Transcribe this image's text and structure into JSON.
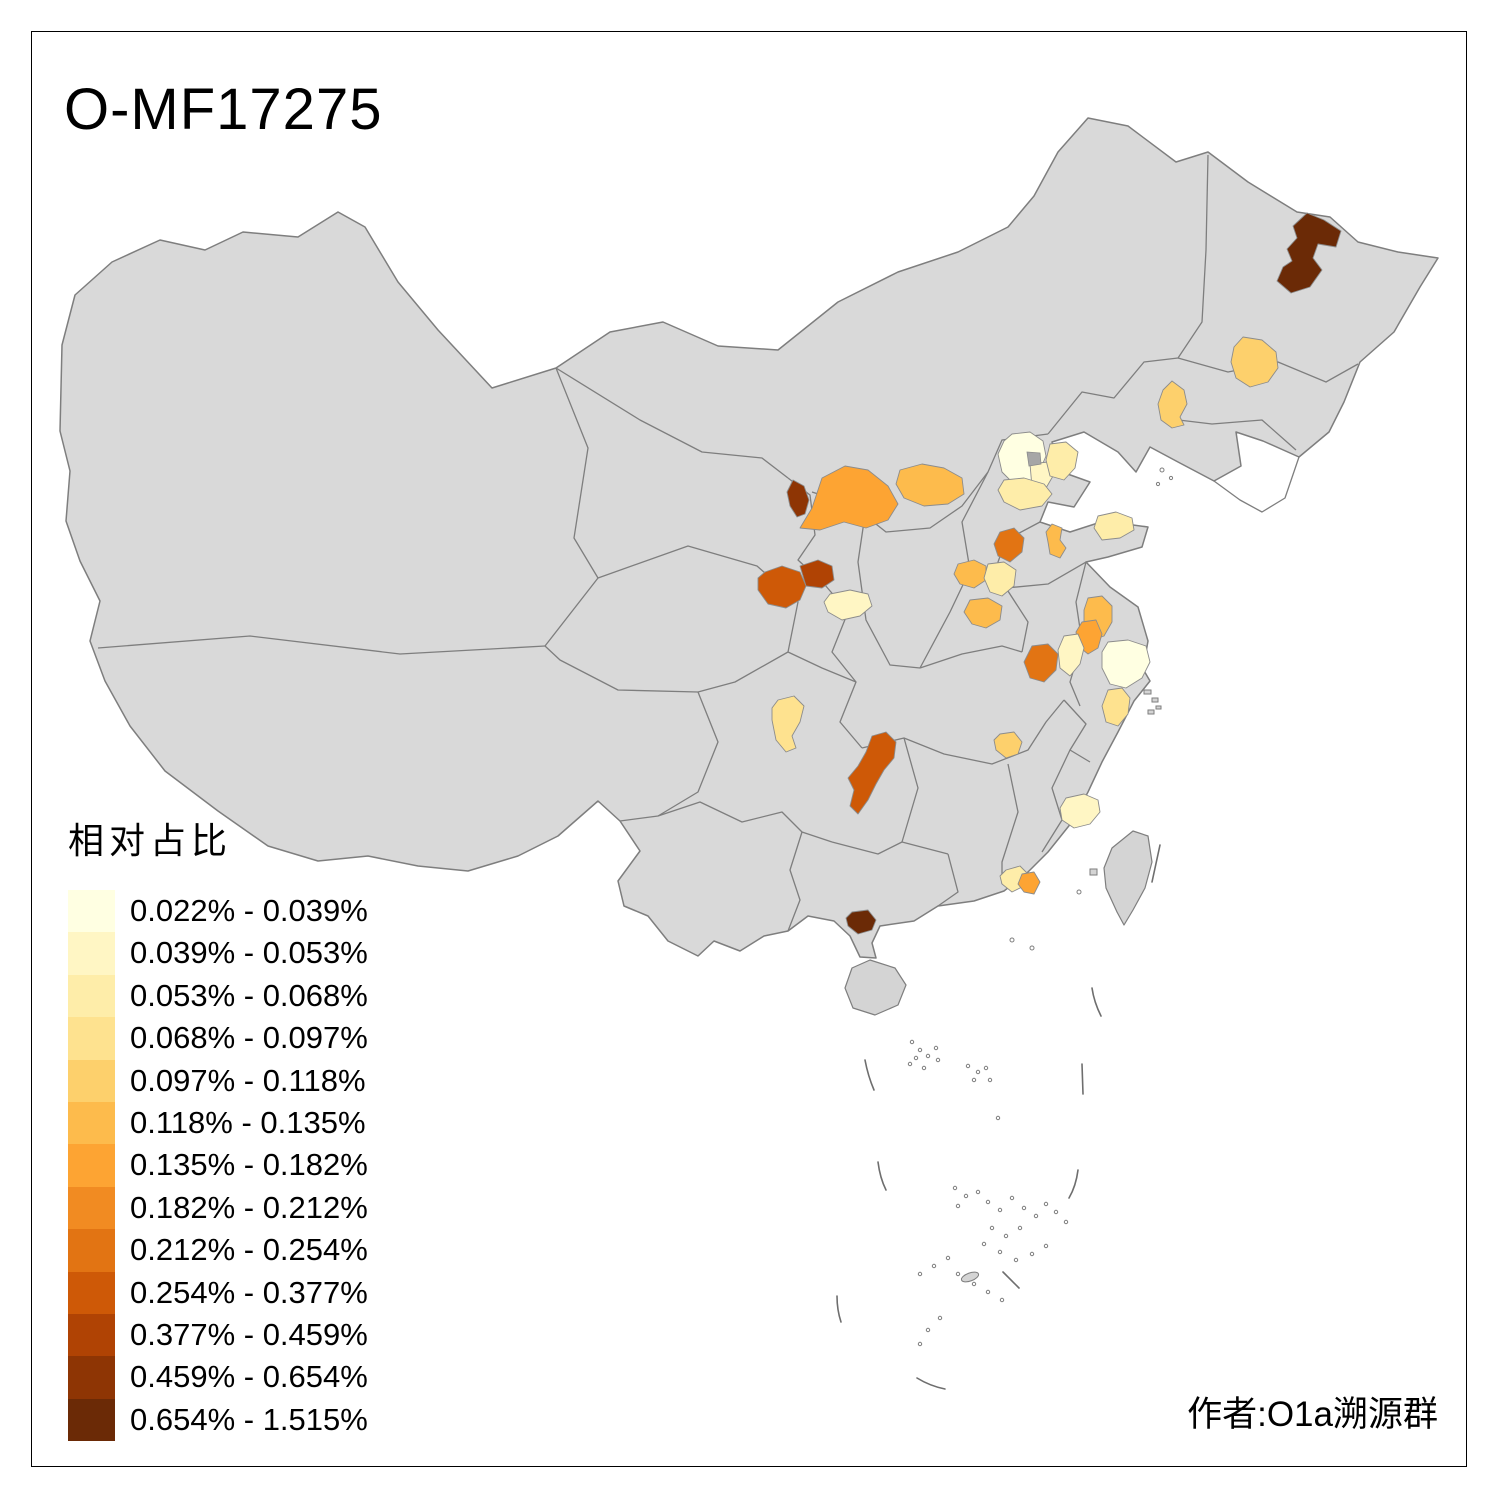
{
  "title": "O-MF17275",
  "credit": "作者:O1a溯源群",
  "legend": {
    "title": "相对占比",
    "items": [
      {
        "label": "0.022% - 0.039%",
        "color": "#FFFFE2"
      },
      {
        "label": "0.039% - 0.053%",
        "color": "#FFF6C4"
      },
      {
        "label": "0.053% - 0.068%",
        "color": "#FEEDA9"
      },
      {
        "label": "0.068% - 0.097%",
        "color": "#FEE28F"
      },
      {
        "label": "0.097% - 0.118%",
        "color": "#FDD06C"
      },
      {
        "label": "0.118% - 0.135%",
        "color": "#FDBB4C"
      },
      {
        "label": "0.135% - 0.182%",
        "color": "#FDA433"
      },
      {
        "label": "0.182% - 0.212%",
        "color": "#F18B22"
      },
      {
        "label": "0.212% - 0.254%",
        "color": "#E27413"
      },
      {
        "label": "0.254% - 0.377%",
        "color": "#CE5907"
      },
      {
        "label": "0.377% - 0.459%",
        "color": "#B04304"
      },
      {
        "label": "0.459% - 0.654%",
        "color": "#8E3504"
      },
      {
        "label": "0.654% - 1.515%",
        "color": "#6B2A06"
      }
    ]
  },
  "map": {
    "sea_color": "#FFFFFF",
    "land_color": "#D9D9D9",
    "island_color": "#D4D4D4",
    "border_color": "#7E7E7E",
    "enclave_color": "#A6A6A6",
    "regions": [
      {
        "id": "r1",
        "band": 13
      },
      {
        "id": "r2",
        "band": 5
      },
      {
        "id": "r3",
        "band": 5
      },
      {
        "id": "r4",
        "band": 1
      },
      {
        "id": "r5",
        "band": 2
      },
      {
        "id": "r6",
        "band": 3
      },
      {
        "id": "r7",
        "band": 3
      },
      {
        "id": "r8",
        "band": 7
      },
      {
        "id": "r9",
        "band": 6
      },
      {
        "id": "r10",
        "band": 12
      },
      {
        "id": "r11",
        "band": 10
      },
      {
        "id": "r12",
        "band": 11
      },
      {
        "id": "r13",
        "band": 2
      },
      {
        "id": "r14",
        "band": 6
      },
      {
        "id": "r15",
        "band": 3
      },
      {
        "id": "r16",
        "band": 6
      },
      {
        "id": "r17",
        "band": 9
      },
      {
        "id": "r18",
        "band": 6
      },
      {
        "id": "r19",
        "band": 3
      },
      {
        "id": "r20",
        "band": 9
      },
      {
        "id": "r21",
        "band": 2
      },
      {
        "id": "r22",
        "band": 6
      },
      {
        "id": "r23",
        "band": 7
      },
      {
        "id": "r24",
        "band": 1
      },
      {
        "id": "r25",
        "band": 4
      },
      {
        "id": "r26",
        "band": 5
      },
      {
        "id": "r27",
        "band": 4
      },
      {
        "id": "r28",
        "band": 10
      },
      {
        "id": "r29",
        "band": 2
      },
      {
        "id": "r30",
        "band": 3
      },
      {
        "id": "r31",
        "band": 7
      },
      {
        "id": "r32",
        "band": 13
      }
    ]
  }
}
